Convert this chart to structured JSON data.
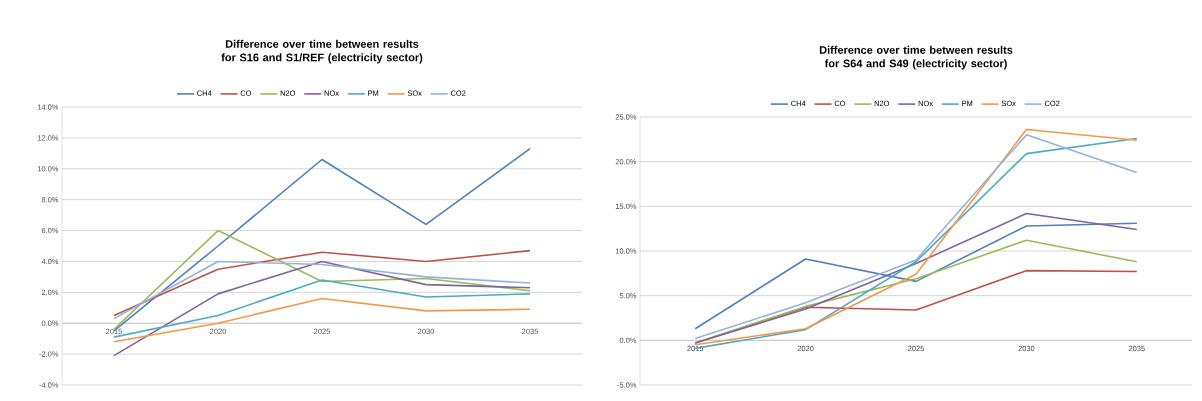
{
  "chart_data": [
    {
      "type": "line",
      "title": "Difference over time between results for S16 and S1/REF (electricity sector)",
      "categories": [
        "2015",
        "2020",
        "2025",
        "2030",
        "2035"
      ],
      "series": [
        {
          "name": "CH4",
          "color": "#4f81bd",
          "values": [
            -0.5,
            5.0,
            10.6,
            6.4,
            11.3
          ]
        },
        {
          "name": "CO",
          "color": "#c0504d",
          "values": [
            0.5,
            3.5,
            4.6,
            4.0,
            4.7
          ]
        },
        {
          "name": "N2O",
          "color": "#9bbb59",
          "values": [
            -0.4,
            6.0,
            2.7,
            2.9,
            2.1
          ]
        },
        {
          "name": "NOx",
          "color": "#8064a2",
          "values": [
            -2.1,
            1.9,
            4.0,
            2.5,
            2.3
          ]
        },
        {
          "name": "PM",
          "color": "#4bacc6",
          "values": [
            -0.9,
            0.5,
            2.8,
            1.7,
            1.9
          ]
        },
        {
          "name": "SOx",
          "color": "#f79646",
          "values": [
            -1.2,
            0.0,
            1.6,
            0.8,
            0.9
          ]
        },
        {
          "name": "CO2",
          "color": "#95b3d7",
          "values": [
            0.3,
            4.0,
            3.8,
            3.0,
            2.6
          ]
        }
      ],
      "ylim": [
        -4,
        14
      ],
      "yticks": [
        {
          "value": -4,
          "label": "-4.0%"
        },
        {
          "value": -2,
          "label": "-2.0%"
        },
        {
          "value": 0,
          "label": "0.0%"
        },
        {
          "value": 2,
          "label": "2.0%"
        },
        {
          "value": 4,
          "label": "4.0%"
        },
        {
          "value": 6,
          "label": "6.0%"
        },
        {
          "value": 8,
          "label": "8.0%"
        },
        {
          "value": 10,
          "label": "10.0%"
        },
        {
          "value": 12,
          "label": "12.0%"
        },
        {
          "value": 14,
          "label": "14.0%"
        }
      ],
      "grid": "y",
      "legend": "top",
      "marker": "none",
      "line_style": "solid"
    },
    {
      "type": "line",
      "title": "Difference over time between results for S64 and S49 (electricity sector)",
      "categories": [
        "2015",
        "2020",
        "2025",
        "2030",
        "2035"
      ],
      "series": [
        {
          "name": "CH4",
          "color": "#4f81bd",
          "values": [
            1.3,
            9.1,
            6.6,
            12.8,
            13.1
          ]
        },
        {
          "name": "CO",
          "color": "#c0504d",
          "values": [
            -0.3,
            3.7,
            3.4,
            7.8,
            7.7
          ]
        },
        {
          "name": "N2O",
          "color": "#9bbb59",
          "values": [
            -0.3,
            3.8,
            6.9,
            11.2,
            8.8
          ]
        },
        {
          "name": "NOx",
          "color": "#8064a2",
          "values": [
            -0.3,
            3.5,
            8.6,
            14.2,
            12.4
          ]
        },
        {
          "name": "PM",
          "color": "#4bacc6",
          "values": [
            -0.9,
            1.2,
            8.8,
            20.9,
            22.6
          ]
        },
        {
          "name": "SOx",
          "color": "#f79646",
          "values": [
            -0.5,
            1.3,
            7.4,
            23.6,
            22.4
          ]
        },
        {
          "name": "CO2",
          "color": "#95b3d7",
          "values": [
            0.2,
            4.2,
            9.0,
            23.0,
            18.8
          ]
        }
      ],
      "ylim": [
        -5,
        25
      ],
      "yticks": [
        {
          "value": -5,
          "label": "-5.0%"
        },
        {
          "value": 0,
          "label": "0.0%"
        },
        {
          "value": 5,
          "label": "5.0%"
        },
        {
          "value": 10,
          "label": "10.0%"
        },
        {
          "value": 15,
          "label": "15.0%"
        },
        {
          "value": 20,
          "label": "20.0%"
        },
        {
          "value": 25,
          "label": "25.0%"
        }
      ],
      "grid": "y",
      "legend": "top",
      "marker": "none",
      "line_style": "solid"
    }
  ]
}
